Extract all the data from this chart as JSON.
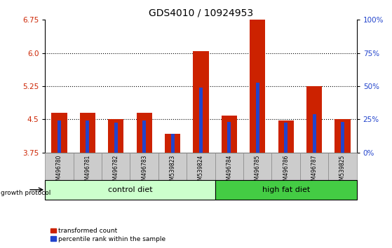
{
  "title": "GDS4010 / 10924953",
  "samples": [
    "GSM496780",
    "GSM496781",
    "GSM496782",
    "GSM496783",
    "GSM539823",
    "GSM539824",
    "GSM496784",
    "GSM496785",
    "GSM496786",
    "GSM496787",
    "GSM539825"
  ],
  "red_values": [
    4.65,
    4.65,
    4.5,
    4.65,
    4.18,
    6.05,
    4.58,
    6.75,
    4.48,
    5.25,
    4.5
  ],
  "blue_values": [
    4.48,
    4.48,
    4.42,
    4.48,
    4.18,
    5.22,
    4.44,
    5.33,
    4.42,
    4.62,
    4.44
  ],
  "y_min": 3.75,
  "y_max": 6.75,
  "y_ticks_left": [
    3.75,
    4.5,
    5.25,
    6.0,
    6.75
  ],
  "y_ticks_right_vals": [
    3.75,
    4.5,
    5.25,
    6.0,
    6.75
  ],
  "y_ticks_right_labels": [
    "0%",
    "25%",
    "50%",
    "75%",
    "100%"
  ],
  "control_label": "control diet",
  "highfat_label": "high fat diet",
  "growth_protocol_label": "growth protocol",
  "legend_red": "transformed count",
  "legend_blue": "percentile rank within the sample",
  "red_bar_width": 0.55,
  "blue_bar_width": 0.12,
  "bar_color_red": "#cc2200",
  "bar_color_blue": "#2244cc",
  "control_bg": "#ccffcc",
  "highfat_bg": "#44cc44",
  "tick_bg": "#cccccc",
  "title_fontsize": 10,
  "tick_fontsize": 7.5,
  "label_fontsize": 7
}
